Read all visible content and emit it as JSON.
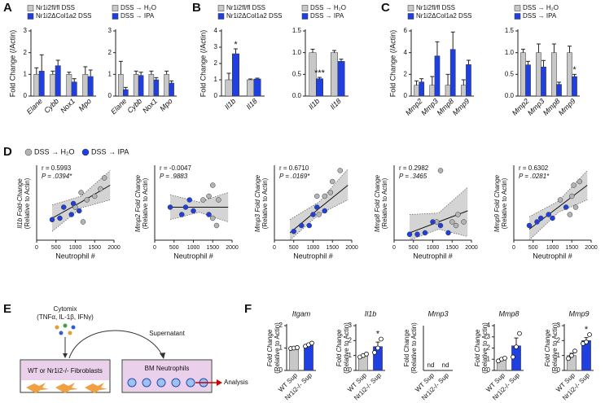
{
  "panel_labels": [
    "A",
    "B",
    "C",
    "D",
    "E",
    "F"
  ],
  "diagram": {
    "stimulus": "Cytomix",
    "stimulus_detail": "(TNFα, IL-1β, IFNγ)",
    "well1": "WT or Nr1i2-/- Fibroblasts",
    "transfer": "Supernatant",
    "well2": "BM Neutrophils",
    "readout": "Analysis"
  },
  "chart_data": [
    {
      "type": "bar",
      "ylabel": "Fold Change (/Actin)",
      "categories": [
        "Elane",
        "Cybb",
        "Nox1",
        "Mpo"
      ],
      "ylim": [
        0,
        3
      ],
      "yticks": [
        0,
        1,
        2,
        3
      ],
      "series": [
        {
          "name": "Nr1i2fl/fl DSS",
          "color": "#c8c8c8",
          "values": [
            1.0,
            1.0,
            1.0,
            1.0
          ],
          "errors": [
            0.3,
            0.15,
            0.1,
            0.35
          ]
        },
        {
          "name": "Nr1i2ΔCol1a2 DSS",
          "color": "#1f3fe0",
          "values": [
            1.15,
            1.4,
            0.65,
            0.9
          ],
          "errors": [
            0.75,
            0.25,
            0.15,
            0.3
          ]
        }
      ]
    },
    {
      "type": "bar",
      "categories": [
        "Elane",
        "Cybb",
        "Nox1",
        "Mpo"
      ],
      "ylim": [
        0,
        3
      ],
      "yticks": [
        0,
        1,
        2,
        3
      ],
      "series": [
        {
          "name": "DSS → H₂O",
          "color": "#c8c8c8",
          "values": [
            1.0,
            1.0,
            1.0,
            1.0
          ],
          "errors": [
            0.6,
            0.15,
            0.15,
            0.15
          ]
        },
        {
          "name": "DSS → IPA",
          "color": "#1f3fe0",
          "values": [
            0.3,
            0.95,
            0.75,
            0.6
          ],
          "errors": [
            0.1,
            0.15,
            0.1,
            0.1
          ]
        }
      ]
    },
    {
      "type": "bar",
      "ylabel": "Fold Change (/Actin)",
      "categories": [
        "Il1b",
        "Il18"
      ],
      "ylim": [
        0,
        4
      ],
      "yticks": [
        0,
        1,
        2,
        3,
        4
      ],
      "series": [
        {
          "name": "Nr1i2fl/fl DSS",
          "color": "#c8c8c8",
          "values": [
            1.0,
            1.0
          ],
          "errors": [
            0.4,
            0.05
          ]
        },
        {
          "name": "Nr1i2ΔCol1a2 DSS",
          "color": "#1f3fe0",
          "values": [
            2.6,
            1.05
          ],
          "errors": [
            0.3,
            0.05
          ]
        }
      ],
      "annotations": [
        {
          "text": "*",
          "series": 1,
          "index": 0
        }
      ]
    },
    {
      "type": "bar",
      "categories": [
        "Il1b",
        "Il18"
      ],
      "ylim": [
        0,
        1.5
      ],
      "yticks": [
        {
          "value": 0,
          "label": "0.0"
        },
        0.5,
        {
          "value": 1,
          "label": "1.0"
        },
        1.5
      ],
      "series": [
        {
          "name": "DSS → H₂O",
          "color": "#c8c8c8",
          "values": [
            1.0,
            1.0
          ],
          "errors": [
            0.08,
            0.05
          ]
        },
        {
          "name": "DSS → IPA",
          "color": "#1f3fe0",
          "values": [
            0.4,
            0.8
          ],
          "errors": [
            0.03,
            0.05
          ]
        }
      ],
      "annotations": [
        {
          "text": "***",
          "series": 1,
          "index": 0
        }
      ]
    },
    {
      "type": "bar",
      "ylabel": "Fold Change (/Actin)",
      "categories": [
        "Mmp2",
        "Mmp3",
        "Mmp8",
        "Mmp9"
      ],
      "ylim": [
        0,
        6
      ],
      "yticks": [
        0,
        2,
        4,
        6
      ],
      "series": [
        {
          "name": "Nr1i2fl/fl DSS",
          "color": "#c8c8c8",
          "values": [
            1.0,
            1.0,
            1.0,
            1.0
          ],
          "errors": [
            0.4,
            0.8,
            1.0,
            0.5
          ]
        },
        {
          "name": "Nr1i2ΔCol1a2 DSS",
          "color": "#1f3fe0",
          "values": [
            1.3,
            3.7,
            4.3,
            2.9
          ],
          "errors": [
            0.3,
            1.3,
            1.6,
            0.4
          ]
        }
      ]
    },
    {
      "type": "bar",
      "categories": [
        "Mmp2",
        "Mmp3",
        "Mmp8",
        "Mmp9"
      ],
      "ylim": [
        0,
        1.5
      ],
      "yticks": [
        {
          "value": 0,
          "label": "0.0"
        },
        0.5,
        {
          "value": 1,
          "label": "1.0"
        },
        1.5
      ],
      "series": [
        {
          "name": "DSS → H₂O",
          "color": "#c8c8c8",
          "values": [
            1.0,
            1.0,
            1.0,
            1.0
          ],
          "errors": [
            0.08,
            0.2,
            0.2,
            0.15
          ]
        },
        {
          "name": "DSS → IPA",
          "color": "#1f3fe0",
          "values": [
            0.72,
            0.67,
            0.27,
            0.45
          ],
          "errors": [
            0.08,
            0.15,
            0.05,
            0.05
          ]
        }
      ],
      "annotations": [
        {
          "text": "*",
          "series": 1,
          "index": 3
        }
      ]
    },
    {
      "type": "scatter",
      "ylabel": [
        "Il1b Fold-Change",
        "(Relative to Actin)"
      ],
      "xlabel": "Neutrophil #",
      "r_label": "r = 0.5993",
      "p_label": "P = .0394*",
      "xlim": [
        0,
        2000
      ],
      "xticks": [
        0,
        500,
        1000,
        1500,
        2000
      ],
      "ylim": [
        0,
        1
      ],
      "series": [
        {
          "name": "DSS → H₂O",
          "color": "#b4b4b4",
          "x": [
            1000,
            1150,
            1300,
            1500,
            1650,
            1750,
            1200
          ],
          "values": [
            0.45,
            0.65,
            0.55,
            0.6,
            0.7,
            0.85,
            0.25
          ]
        },
        {
          "name": "DSS → IPA",
          "color": "#1f3fe0",
          "x": [
            400,
            600,
            700,
            900,
            950,
            1100
          ],
          "values": [
            0.28,
            0.3,
            0.45,
            0.35,
            0.5,
            0.4
          ]
        }
      ],
      "fit": {
        "x": [
          400,
          1150,
          1900
        ],
        "y": [
          0.3,
          0.52,
          0.75
        ],
        "lower": [
          0.12,
          0.44,
          0.55
        ],
        "upper": [
          0.48,
          0.6,
          0.95
        ]
      }
    },
    {
      "type": "scatter",
      "ylabel": [
        "Mmp2 Fold Change",
        "(Relative to Actin)"
      ],
      "xlabel": "Neutrophil #",
      "r_label": "r = -0.0047",
      "p_label": "P = .9883",
      "xlim": [
        0,
        2000
      ],
      "xticks": [
        0,
        500,
        1000,
        1500,
        2000
      ],
      "ylim": [
        0,
        1
      ],
      "series": [
        {
          "color": "#b4b4b4",
          "x": [
            1250,
            1400,
            1500,
            1650,
            1500,
            1600
          ],
          "values": [
            0.55,
            0.6,
            0.75,
            0.55,
            0.3,
            0.2
          ]
        },
        {
          "color": "#1f3fe0",
          "x": [
            400,
            700,
            800,
            900,
            1000,
            1400
          ],
          "values": [
            0.45,
            0.35,
            0.45,
            0.55,
            0.4,
            0.35
          ]
        }
      ],
      "fit": {
        "x": [
          400,
          1150,
          1900
        ],
        "y": [
          0.45,
          0.45,
          0.45
        ],
        "lower": [
          0.28,
          0.38,
          0.25
        ],
        "upper": [
          0.62,
          0.52,
          0.65
        ]
      }
    },
    {
      "type": "scatter",
      "ylabel": [
        "Mmp3 Fold Change",
        "(Relative to Actin)"
      ],
      "xlabel": "Neutrophil #",
      "r_label": "r = 0.6710",
      "p_label": "P = .0169*",
      "xlim": [
        0,
        2000
      ],
      "xticks": [
        0,
        500,
        1000,
        1500,
        2000
      ],
      "ylim": [
        0,
        1
      ],
      "series": [
        {
          "color": "#b4b4b4",
          "x": [
            1100,
            1300,
            1450,
            1500,
            1700,
            1150
          ],
          "values": [
            0.6,
            0.6,
            0.65,
            0.8,
            0.95,
            0.35
          ]
        },
        {
          "color": "#1f3fe0",
          "x": [
            500,
            700,
            900,
            1000,
            1100,
            1300
          ],
          "values": [
            0.12,
            0.2,
            0.2,
            0.35,
            0.45,
            0.4
          ]
        }
      ],
      "fit": {
        "x": [
          400,
          1150,
          1900
        ],
        "y": [
          0.1,
          0.43,
          0.75
        ],
        "lower": [
          0.0,
          0.35,
          0.55
        ],
        "upper": [
          0.28,
          0.52,
          0.97
        ]
      }
    },
    {
      "type": "scatter",
      "ylabel": [
        "Mmp8 Fold Change",
        "(Relative to Actin)"
      ],
      "xlabel": "Neutrophil #",
      "r_label": "r = 0.2982",
      "p_label": "P = .3465",
      "xlim": [
        0,
        2000
      ],
      "xticks": [
        0,
        500,
        1000,
        1500,
        2000
      ],
      "ylim": [
        0,
        1
      ],
      "series": [
        {
          "color": "#b4b4b4",
          "x": [
            1200,
            1500,
            1600,
            1650,
            1800,
            1100
          ],
          "values": [
            0.95,
            0.25,
            0.2,
            0.35,
            0.25,
            0.25
          ]
        },
        {
          "color": "#1f3fe0",
          "x": [
            400,
            600,
            800,
            1000,
            1200,
            1400
          ],
          "values": [
            0.08,
            0.08,
            0.1,
            0.25,
            0.2,
            0.1
          ]
        }
      ],
      "fit": {
        "x": [
          400,
          1150,
          1900
        ],
        "y": [
          0.1,
          0.25,
          0.4
        ],
        "lower": [
          0.0,
          0.15,
          0.05
        ],
        "upper": [
          0.35,
          0.37,
          0.72
        ]
      }
    },
    {
      "type": "scatter",
      "ylabel": [
        "Mmp9 Fold Change",
        "(Relative to Actin)"
      ],
      "xlabel": "Neutrophil #",
      "r_label": "r = 0.6302",
      "p_label": "P = .0281*",
      "xlim": [
        0,
        2000
      ],
      "xticks": [
        0,
        500,
        1000,
        1500,
        2000
      ],
      "ylim": [
        0,
        1
      ],
      "series": [
        {
          "color": "#b4b4b4",
          "x": [
            1200,
            1500,
            1550,
            1700,
            1450,
            1600
          ],
          "values": [
            0.55,
            0.6,
            0.75,
            0.8,
            0.35,
            0.45
          ]
        },
        {
          "color": "#1f3fe0",
          "x": [
            400,
            600,
            700,
            900,
            1000,
            1350
          ],
          "values": [
            0.2,
            0.25,
            0.3,
            0.35,
            0.3,
            0.45
          ]
        }
      ],
      "fit": {
        "x": [
          400,
          1150,
          1900
        ],
        "y": [
          0.15,
          0.45,
          0.75
        ],
        "lower": [
          0.0,
          0.38,
          0.55
        ],
        "upper": [
          0.32,
          0.53,
          0.95
        ]
      }
    },
    {
      "type": "barpoints",
      "title": "Itgam",
      "ylabel": [
        "Fold Change",
        "(Relative to Actin)"
      ],
      "categories": [
        "WT Sup",
        "Nr1i2-/- Sup"
      ],
      "colors": [
        "#c8c8c8",
        "#1f3fe0"
      ],
      "ylim": [
        0,
        2
      ],
      "yticks": [
        0,
        1,
        2
      ],
      "values": [
        1.0,
        1.15
      ],
      "errors": [
        0.02,
        0.05
      ],
      "points": [
        [
          0.98,
          1.0,
          1.02
        ],
        [
          1.08,
          1.15,
          1.22
        ]
      ]
    },
    {
      "type": "barpoints",
      "title": "Il1b",
      "ylabel": [
        "Fold Change",
        "(Relative to Actin)"
      ],
      "categories": [
        "WT Sup",
        "Nr1i2-/- Sup"
      ],
      "colors": [
        "#c8c8c8",
        "#1f3fe0"
      ],
      "ylim": [
        0,
        3
      ],
      "yticks": [
        0,
        1,
        2,
        3
      ],
      "values": [
        1.0,
        1.6
      ],
      "errors": [
        0.05,
        0.3
      ],
      "points": [
        [
          0.9,
          1.0,
          1.1
        ],
        [
          1.2,
          1.5,
          2.1
        ]
      ],
      "annotations": [
        {
          "text": "*",
          "index": 1
        }
      ]
    },
    {
      "type": "barpoints",
      "title": "Mmp3",
      "ylabel": [
        "Fold Change",
        "(Relative to Actin)"
      ],
      "categories": [
        "WT Sup",
        "Nr1i2-/- Sup"
      ],
      "colors": [
        "#c8c8c8",
        "#1f3fe0"
      ],
      "values": [
        null,
        null
      ],
      "value_labels": [
        "nd",
        "nd"
      ]
    },
    {
      "type": "barpoints",
      "title": "Mmp8",
      "ylabel": [
        "Fold Change",
        "(Relative to Actin)"
      ],
      "categories": [
        "WT Sup",
        "Nr1i2-/- Sup"
      ],
      "colors": [
        "#c8c8c8",
        "#1f3fe0"
      ],
      "ylim": [
        0,
        4
      ],
      "yticks": [
        0,
        1,
        2,
        3,
        4
      ],
      "values": [
        1.0,
        2.2
      ],
      "errors": [
        0.08,
        0.7
      ],
      "points": [
        [
          0.85,
          1.0,
          1.1
        ],
        [
          1.2,
          2.1,
          3.3
        ]
      ]
    },
    {
      "type": "barpoints",
      "title": "Mmp9",
      "ylabel": [
        "Fold Change",
        "(Relative to Actin)"
      ],
      "categories": [
        "WT Sup",
        "Nr1i2-/- Sup"
      ],
      "colors": [
        "#c8c8c8",
        "#1f3fe0"
      ],
      "ylim": [
        0,
        3
      ],
      "yticks": [
        0,
        1,
        2,
        3
      ],
      "values": [
        1.0,
        2.0
      ],
      "errors": [
        0.15,
        0.2
      ],
      "points": [
        [
          0.8,
          1.0,
          1.3
        ],
        [
          1.8,
          1.9,
          2.4
        ]
      ],
      "annotations": [
        {
          "text": "*",
          "index": 1
        }
      ]
    }
  ]
}
